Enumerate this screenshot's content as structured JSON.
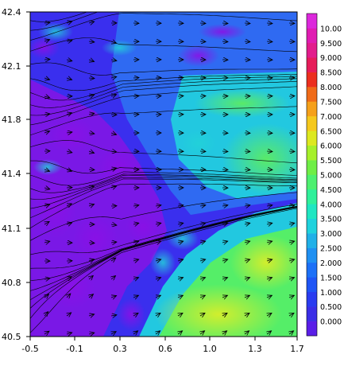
{
  "chart_data": {
    "type": "heatmap",
    "title": "",
    "xlabel": "",
    "ylabel": "",
    "xlim": [
      -0.5,
      1.7
    ],
    "ylim": [
      40.5,
      42.4
    ],
    "x_ticks": [
      "-0.5",
      "-0.1",
      "0.3",
      "0.6",
      "1.0",
      "1.3",
      "1.7"
    ],
    "y_ticks": [
      "40.5",
      "40.8",
      "41.1",
      "41.4",
      "41.8",
      "42.1",
      "42.4"
    ],
    "colorbar": {
      "labels": [
        "0.000",
        "0.500",
        "1.000",
        "1.500",
        "2.000",
        "2.500",
        "3.000",
        "3.500",
        "4.000",
        "4.500",
        "5.000",
        "5.500",
        "6.000",
        "6.500",
        "7.000",
        "7.500",
        "8.000",
        "8.500",
        "9.000",
        "9.500",
        "10.00"
      ],
      "colors": [
        "#5a1ee8",
        "#3b2ee6",
        "#2a3cf0",
        "#1f55f5",
        "#1c70f7",
        "#1f90f2",
        "#20b0e8",
        "#1fd2dd",
        "#1fe6c2",
        "#2ff09a",
        "#4ef070",
        "#6fee46",
        "#a6f02a",
        "#dde81f",
        "#f5c81c",
        "#f5a01a",
        "#f06b18",
        "#ec2f1f",
        "#e61c5a",
        "#e21c8c",
        "#e01cb2",
        "#dc28dc"
      ],
      "underflow_color": "#5a1ee8",
      "overflow_color": "#dc28dc"
    },
    "field_regions": {
      "low": "#7a18e6",
      "low_mid": "#3a2fee",
      "mid": "#2f6af2",
      "mid_high": "#22c8e0",
      "high": "#55ee68",
      "peak": "#c8ee30"
    },
    "vector_overlay": "streamlines",
    "grid": false
  }
}
